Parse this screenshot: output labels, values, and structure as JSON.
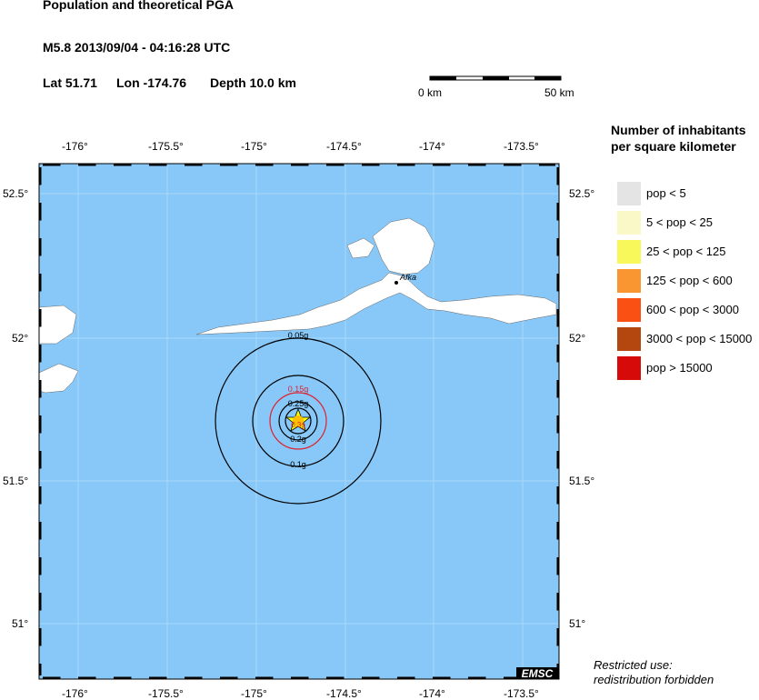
{
  "header": {
    "title": "Population and theoretical PGA",
    "event": "M5.8  2013/09/04 - 04:16:28 UTC",
    "lat": "Lat 51.71",
    "lon": "Lon -174.76",
    "depth": "Depth  10.0 km"
  },
  "scale_bar": {
    "start": "0 km",
    "end": "50 km"
  },
  "map": {
    "lon_ticks": [
      "-176°",
      "-175.5°",
      "-175°",
      "-174.5°",
      "-174°",
      "-173.5°"
    ],
    "lat_ticks": [
      "52.5°",
      "52°",
      "51.5°",
      "51°"
    ],
    "ocean_color": "#87c8f8",
    "epicenter": {
      "lat": 51.71,
      "lon": -174.76
    },
    "place": "Afka",
    "contours": [
      {
        "label": "0.05g",
        "color": "#000000"
      },
      {
        "label": "0.1g",
        "color": "#000000"
      },
      {
        "label": "0.15g",
        "color": "#e0202e"
      },
      {
        "label": "0.2g",
        "color": "#000000"
      },
      {
        "label": "0.25g",
        "color": "#000000"
      },
      {
        "label": "0.3g",
        "color": "#e0202e"
      }
    ],
    "logo": "EMSC"
  },
  "legend": {
    "title_line1": "Number of inhabitants",
    "title_line2": "per square kilometer",
    "items": [
      {
        "label": "pop < 5",
        "color": "#e4e4e4"
      },
      {
        "label": "5 < pop < 25",
        "color": "#f9f8c6"
      },
      {
        "label": "25 < pop < 125",
        "color": "#f8f85a"
      },
      {
        "label": "125 < pop < 600",
        "color": "#fa9632"
      },
      {
        "label": "600 < pop < 3000",
        "color": "#fa5014"
      },
      {
        "label": "3000 < pop < 15000",
        "color": "#b4460f"
      },
      {
        "label": "pop > 15000",
        "color": "#d70a0a"
      }
    ]
  },
  "footer": {
    "line1": "Restricted use:",
    "line2": "redistribution forbidden"
  }
}
